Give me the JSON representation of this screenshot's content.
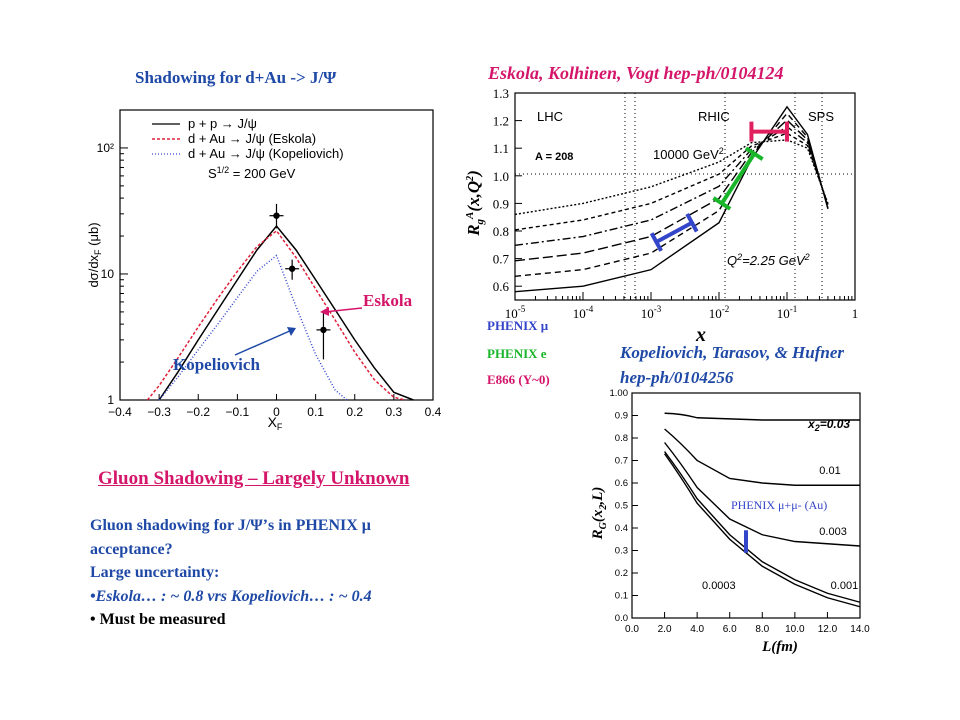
{
  "texts": {
    "title_left": "Shadowing for d+Au -> J/Ψ",
    "title_right": "Eskola, Kolhinen, Vogt hep-ph/0104124",
    "ann_eskola": "Eskola",
    "ann_kopeliovich": "Kopeliovich",
    "legend_mu": "PHENIX μ",
    "legend_e": "PHENIX e",
    "legend_e866": "E866 (Y~0)",
    "kth_ref_line1": "Kopeliovich, Tarasov, & Hufner",
    "kth_ref_line2": "hep-ph/0104256",
    "heading": "Gluon Shadowing – Largely Unknown",
    "body_line1": "Gluon shadowing for J/Ψ’s in PHENIX μ",
    "body_line2": "acceptance?",
    "body_line3": "Large uncertainty:",
    "body_line4": "•Eskola… : ~ 0.8 vrs Kopeliovich… : ~ 0.4",
    "body_line5": "• Must be measured",
    "phenix_ann": "PHENIX μ+μ- (Au)"
  },
  "colors": {
    "title_blue": "#1f49a6",
    "pink": "#d4156a",
    "phenix_mu": "#3345c8",
    "phenix_e": "#19b52a",
    "e866": "#e0205f",
    "eskola_curve": "#e0203a",
    "kopel_curve": "#3344cc"
  },
  "chart_data": [
    {
      "type": "line",
      "xlabel": "x_F",
      "ylabel": "dσ/dx_F (μb)",
      "xlim": [
        -0.4,
        0.4
      ],
      "ylim": [
        1,
        200
      ],
      "yscale": "log",
      "x_ticks": [
        "−0.4",
        "−0.3",
        "−0.2",
        "−0.1",
        "0",
        "0.1",
        "0.2",
        "0.3",
        "0.4"
      ],
      "y_ticks": [
        "1",
        "10",
        "10²"
      ],
      "legend_title": "S^1/2 = 200 GeV",
      "legend_position": "top-right",
      "series": [
        {
          "name": "p + p → J/ψ",
          "style": "solid",
          "x": [
            -0.3,
            -0.25,
            -0.2,
            -0.15,
            -0.1,
            -0.05,
            0,
            0.05,
            0.1,
            0.15,
            0.2,
            0.25,
            0.3,
            0.35
          ],
          "values": [
            1.0,
            1.7,
            3.0,
            5.2,
            9.0,
            15.5,
            24.0,
            15.5,
            9.0,
            5.2,
            3.0,
            1.8,
            1.15,
            1.0
          ]
        },
        {
          "name": "d + Au → J/ψ (Eskola)",
          "style": "dashed",
          "x": [
            -0.33,
            -0.3,
            -0.25,
            -0.2,
            -0.15,
            -0.1,
            -0.05,
            0,
            0.05,
            0.1,
            0.15,
            0.2,
            0.25,
            0.3,
            0.33
          ],
          "values": [
            1.0,
            1.3,
            2.2,
            3.8,
            6.4,
            10.5,
            16.5,
            22.0,
            13.5,
            7.6,
            4.3,
            2.4,
            1.45,
            1.05,
            1.0
          ]
        },
        {
          "name": "d + Au → J/ψ (Kopeliovich)",
          "style": "dotted",
          "x": [
            -0.3,
            -0.25,
            -0.2,
            -0.15,
            -0.1,
            -0.05,
            0,
            0.05,
            0.1,
            0.15,
            0.18
          ],
          "values": [
            1.0,
            1.55,
            2.5,
            4.0,
            6.5,
            10.5,
            14.0,
            5.5,
            2.3,
            1.2,
            1.0
          ]
        }
      ],
      "data_points": [
        {
          "x": 0.0,
          "y": 29,
          "yerr": [
            23,
            36
          ]
        },
        {
          "x": 0.04,
          "y": 11,
          "yerr": [
            9,
            13
          ]
        },
        {
          "x": 0.12,
          "y": 3.6,
          "yerr": [
            2.1,
            5.0
          ]
        }
      ],
      "annotations": [
        "Eskola",
        "Kopeliovich"
      ]
    },
    {
      "type": "line",
      "xlabel": "x",
      "ylabel": "R_g^A(x,Q²)",
      "xscale": "log",
      "xlim": [
        1e-05,
        1
      ],
      "ylim": [
        0.55,
        1.3
      ],
      "x_ticks": [
        "10^-5",
        "10^-4",
        "10^-3",
        "10^-2",
        "10^-1",
        "1"
      ],
      "y_ticks": [
        "0.6",
        "0.7",
        "0.8",
        "0.9",
        "1.0",
        "1.1",
        "1.2",
        "1.3"
      ],
      "region_labels": [
        "LHC",
        "RHIC",
        "SPS"
      ],
      "annotations": [
        "A = 208",
        "10000 GeV²",
        "Q²=2.25 GeV²"
      ],
      "series": [
        {
          "name": "Q²=2.25 GeV²",
          "style": "solid",
          "x": [
            1e-05,
            0.0001,
            0.001,
            0.01,
            0.03,
            0.1,
            0.2,
            0.4
          ],
          "values": [
            0.58,
            0.6,
            0.66,
            0.83,
            1.06,
            1.25,
            1.15,
            0.88
          ]
        },
        {
          "name": "10000 GeV²",
          "style": "dashed",
          "x": [
            1e-05,
            0.0001,
            0.001,
            0.01,
            0.03,
            0.1,
            0.2,
            0.4
          ],
          "values": [
            0.86,
            0.9,
            0.96,
            1.05,
            1.12,
            1.13,
            1.1,
            0.9
          ]
        }
      ],
      "measurement_ranges": [
        {
          "name": "PHENIX μ",
          "x": [
            0.0012,
            0.004
          ],
          "y": [
            0.76,
            0.83
          ]
        },
        {
          "name": "PHENIX e",
          "x": [
            0.011,
            0.033
          ],
          "y": [
            0.9,
            1.08
          ]
        },
        {
          "name": "E866 (Y~0)",
          "x": [
            0.03,
            0.1
          ],
          "y": [
            1.16,
            1.16
          ]
        }
      ]
    },
    {
      "type": "line",
      "xlabel": "L(fm)",
      "ylabel": "R_G(x₂,L)",
      "xlim": [
        0,
        14
      ],
      "ylim": [
        0,
        1.0
      ],
      "x_ticks": [
        "0.0",
        "2.0",
        "4.0",
        "6.0",
        "8.0",
        "10.0",
        "12.0",
        "14.0"
      ],
      "y_ticks": [
        "0.0",
        "0.1",
        "0.2",
        "0.3",
        "0.4",
        "0.5",
        "0.6",
        "0.7",
        "0.8",
        "0.9",
        "1.00"
      ],
      "legend_title": "x₂=0.03",
      "series": [
        {
          "name": "0.03",
          "x": [
            2,
            4,
            6,
            8,
            10,
            12,
            14
          ],
          "values": [
            0.91,
            0.89,
            0.885,
            0.88,
            0.88,
            0.88,
            0.88
          ]
        },
        {
          "name": "0.01",
          "x": [
            2,
            4,
            6,
            8,
            10,
            12,
            14
          ],
          "values": [
            0.84,
            0.7,
            0.62,
            0.6,
            0.59,
            0.59,
            0.59
          ]
        },
        {
          "name": "0.003",
          "x": [
            2,
            4,
            6,
            8,
            10,
            12,
            14
          ],
          "values": [
            0.78,
            0.58,
            0.44,
            0.37,
            0.34,
            0.33,
            0.32
          ]
        },
        {
          "name": "0.001",
          "x": [
            2,
            4,
            6,
            8,
            10,
            12,
            14
          ],
          "values": [
            0.74,
            0.53,
            0.37,
            0.25,
            0.17,
            0.11,
            0.07
          ]
        },
        {
          "name": "0.0003",
          "x": [
            2,
            4,
            6,
            8,
            10,
            12,
            14
          ],
          "values": [
            0.73,
            0.51,
            0.35,
            0.23,
            0.15,
            0.09,
            0.05
          ]
        }
      ],
      "annotations": [
        "PHENIX μ+μ- (Au)"
      ],
      "phenix_point": {
        "x": 7,
        "y_range": [
          0.29,
          0.39
        ]
      }
    }
  ]
}
